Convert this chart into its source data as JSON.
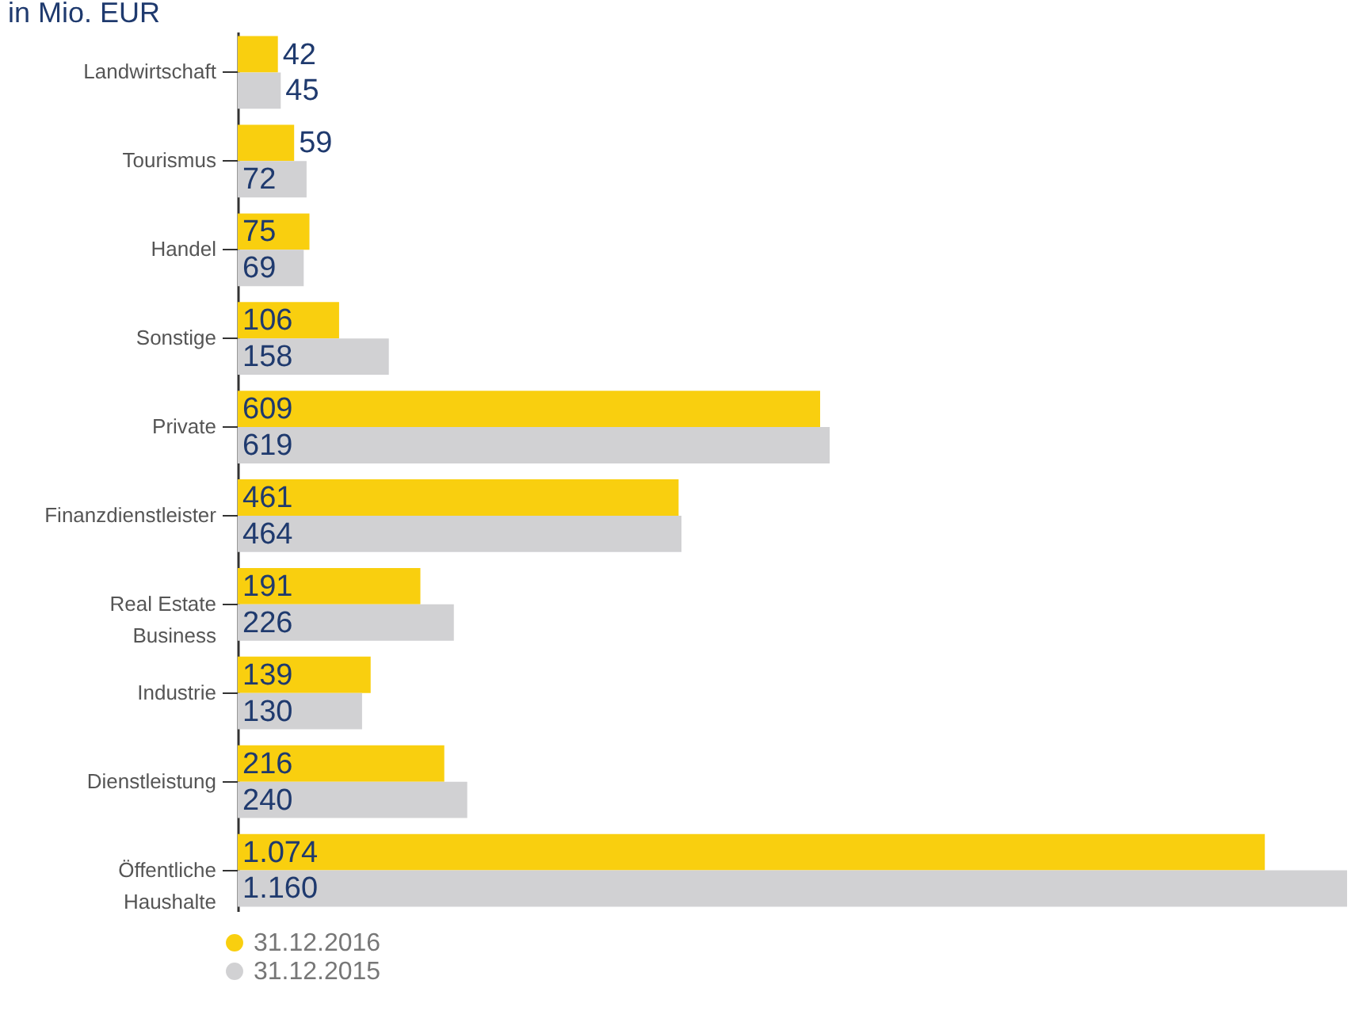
{
  "chart_data": {
    "type": "bar",
    "orientation": "horizontal",
    "title": "in Mio. EUR",
    "categories": [
      "Landwirtschaft",
      "Tourismus",
      "Handel",
      "Sonstige",
      "Private",
      "Finanzdienstleister",
      "Real Estate\nBusiness",
      "Industrie",
      "Dienstleistung",
      "Öffentliche\nHaushalte"
    ],
    "series": [
      {
        "name": "31.12.2016",
        "color": "#f9cf0f",
        "values": [
          42,
          59,
          75,
          106,
          609,
          461,
          191,
          139,
          216,
          1074
        ],
        "value_labels": [
          "42",
          "59",
          "75",
          "106",
          "609",
          "461",
          "191",
          "139",
          "216",
          "1.074"
        ]
      },
      {
        "name": "31.12.2015",
        "color": "#d1d1d3",
        "values": [
          45,
          72,
          69,
          158,
          619,
          464,
          226,
          130,
          240,
          1160
        ],
        "value_labels": [
          "45",
          "72",
          "69",
          "158",
          "619",
          "464",
          "226",
          "130",
          "240",
          "1.160"
        ]
      }
    ],
    "legend": "bottom left",
    "grid": false
  }
}
